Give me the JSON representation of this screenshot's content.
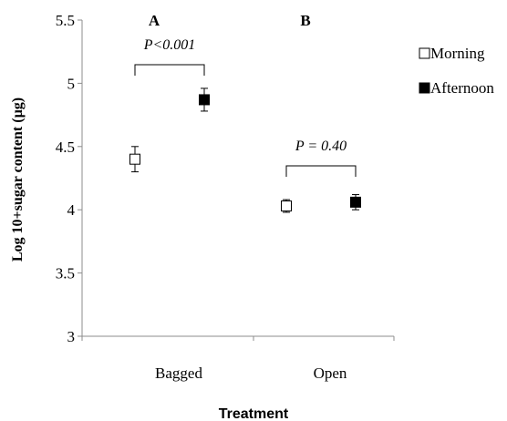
{
  "chart_data": {
    "type": "scatter",
    "xlabel": "Treatment",
    "ylabel": "Log 10+sugar content (µg)",
    "ylim": [
      3,
      5.5
    ],
    "y_ticks": [
      "3",
      "3.5",
      "4",
      "4.5",
      "5",
      "5.5"
    ],
    "categories": [
      "Bagged",
      "Open"
    ],
    "panel_labels": [
      "A",
      "B"
    ],
    "p_values": [
      "P<0.001",
      "P = 0.40"
    ],
    "legend_position": "top-right",
    "series": [
      {
        "name": "Morning",
        "marker": "open-square",
        "color": "#000000",
        "values": [
          4.4,
          4.03
        ],
        "errors": [
          0.1,
          0.05
        ]
      },
      {
        "name": "Afternoon",
        "marker": "filled-square",
        "color": "#000000",
        "values": [
          4.87,
          4.06
        ],
        "errors": [
          0.09,
          0.06
        ]
      }
    ]
  }
}
